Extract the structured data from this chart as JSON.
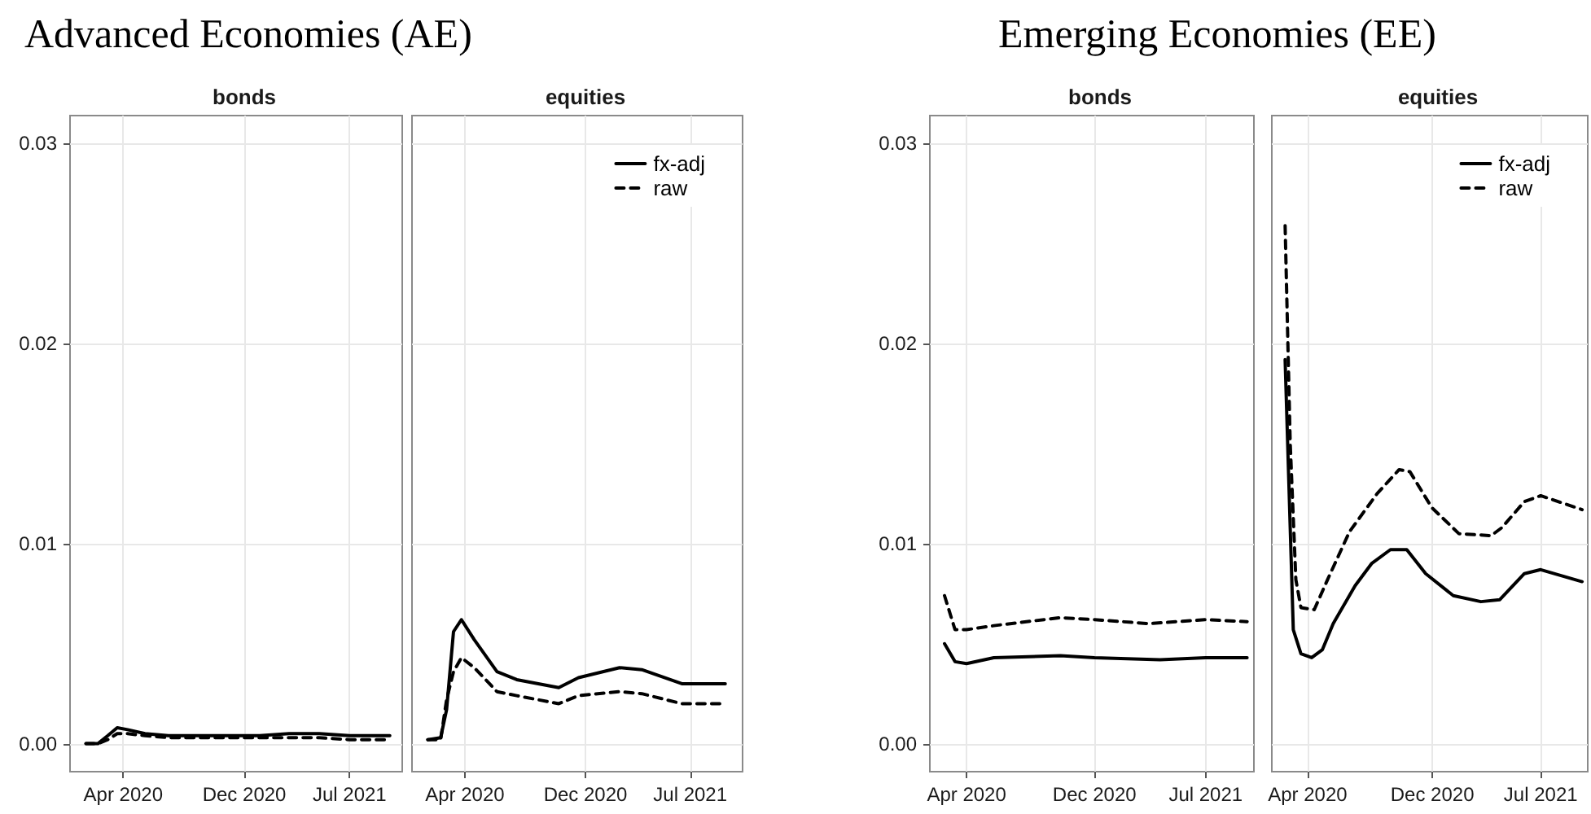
{
  "chart_data": [
    {
      "type": "line",
      "title": "Advanced Economies (AE)",
      "subtitle": "bonds",
      "xlim": [
        "2019-12-16",
        "2021-10-15"
      ],
      "ylim": [
        -0.0014,
        0.0314
      ],
      "xticks": [
        {
          "value": "2020-04",
          "label": "Apr 2020"
        },
        {
          "value": "2020-12",
          "label": "Dec 2020"
        },
        {
          "value": "2021-07",
          "label": "Jul 2021"
        }
      ],
      "yticks": [
        {
          "value": 0,
          "label": "0.00"
        },
        {
          "value": 0.01,
          "label": "0.01"
        },
        {
          "value": 0.02,
          "label": "0.02"
        },
        {
          "value": 0.03,
          "label": "0.03"
        }
      ],
      "grid": true,
      "legend": false,
      "series": [
        {
          "color": "#000000",
          "line_style": "solid",
          "x": [
            "2020-01-17",
            "2020-02-10",
            "2020-03-01",
            "2020-03-20",
            "2020-04-10",
            "2020-05-15",
            "2020-07-01",
            "2020-09-01",
            "2020-11-01",
            "2021-01-01",
            "2021-03-01",
            "2021-05-01",
            "2021-07-01",
            "2021-09-20"
          ],
          "values": [
            0,
            0,
            0.0004,
            0.0008,
            0.0007,
            0.0005,
            0.0004,
            0.0004,
            0.0004,
            0.0004,
            0.0005,
            0.0005,
            0.0004,
            0.0004
          ]
        },
        {
          "color": "#000000",
          "line_style": "dashed",
          "x": [
            "2020-01-17",
            "2020-02-10",
            "2020-03-01",
            "2020-03-20",
            "2020-04-10",
            "2020-05-15",
            "2020-07-01",
            "2020-09-01",
            "2020-11-01",
            "2021-01-01",
            "2021-03-01",
            "2021-05-01",
            "2021-07-01",
            "2021-09-20"
          ],
          "values": [
            0,
            0,
            0.0002,
            0.0005,
            0.0005,
            0.0004,
            0.0003,
            0.0003,
            0.0003,
            0.0003,
            0.0003,
            0.0003,
            0.0002,
            0.0002
          ]
        }
      ]
    },
    {
      "type": "line",
      "subtitle": "equities",
      "xlim": [
        "2019-12-16",
        "2021-10-15"
      ],
      "ylim": [
        -0.0014,
        0.0314
      ],
      "xticks": [
        {
          "value": "2020-04",
          "label": "Apr 2020"
        },
        {
          "value": "2020-12",
          "label": "Dec 2020"
        },
        {
          "value": "2021-07",
          "label": "Jul 2021"
        }
      ],
      "yticks": [
        0,
        0.01,
        0.02,
        0.03
      ],
      "tick_labels": "x",
      "grid": true,
      "legend": "top right",
      "series": [
        {
          "name": "fx-adj",
          "color": "#000000",
          "line_style": "solid",
          "x": [
            "2020-01-17",
            "2020-02-12",
            "2020-02-24",
            "2020-03-09",
            "2020-03-25",
            "2020-04-20",
            "2020-06-05",
            "2020-07-15",
            "2020-10-08",
            "2020-11-17",
            "2021-02-08",
            "2021-03-25",
            "2021-06-14",
            "2021-09-10"
          ],
          "values": [
            0.0002,
            0.0003,
            0.0017,
            0.0056,
            0.0062,
            0.0052,
            0.0036,
            0.0032,
            0.0028,
            0.0033,
            0.0038,
            0.0037,
            0.003,
            0.003
          ]
        },
        {
          "name": "raw",
          "color": "#000000",
          "line_style": "dashed",
          "x": [
            "2020-01-17",
            "2020-02-12",
            "2020-02-24",
            "2020-03-09",
            "2020-03-25",
            "2020-04-20",
            "2020-06-05",
            "2020-07-15",
            "2020-10-08",
            "2020-11-17",
            "2021-02-08",
            "2021-03-25",
            "2021-06-14",
            "2021-09-10"
          ],
          "values": [
            0.0002,
            0.0002,
            0.0022,
            0.0036,
            0.0043,
            0.0038,
            0.0026,
            0.0024,
            0.002,
            0.0024,
            0.0026,
            0.0025,
            0.002,
            0.002
          ]
        }
      ]
    },
    {
      "type": "line",
      "title": "Emerging Economies (EE)",
      "subtitle": "bonds",
      "xlim": [
        "2020-01-22",
        "2021-10-01"
      ],
      "ylim": [
        -0.0014,
        0.0314
      ],
      "xticks": [
        {
          "value": "2020-04",
          "label": "Apr 2020"
        },
        {
          "value": "2020-12",
          "label": "Dec 2020"
        },
        {
          "value": "2021-07",
          "label": "Jul 2021"
        }
      ],
      "yticks": [
        {
          "value": 0,
          "label": "0.00"
        },
        {
          "value": 0.01,
          "label": "0.01"
        },
        {
          "value": 0.02,
          "label": "0.02"
        },
        {
          "value": 0.03,
          "label": "0.03"
        }
      ],
      "grid": true,
      "legend": false,
      "series": [
        {
          "color": "#000000",
          "line_style": "solid",
          "x": [
            "2020-02-19",
            "2020-03-10",
            "2020-04-01",
            "2020-05-23",
            "2020-09-27",
            "2020-12-01",
            "2021-04-05",
            "2021-07-01",
            "2021-09-18"
          ],
          "values": [
            0.005,
            0.0041,
            0.004,
            0.0043,
            0.0044,
            0.0043,
            0.0042,
            0.0043,
            0.0043
          ]
        },
        {
          "color": "#000000",
          "line_style": "dashed",
          "x": [
            "2020-02-19",
            "2020-03-10",
            "2020-04-01",
            "2020-05-23",
            "2020-09-27",
            "2020-12-01",
            "2021-03-15",
            "2021-07-01",
            "2021-09-18"
          ],
          "values": [
            0.0074,
            0.0057,
            0.0057,
            0.0059,
            0.0063,
            0.0062,
            0.006,
            0.0062,
            0.0061
          ]
        }
      ]
    },
    {
      "type": "line",
      "subtitle": "equities",
      "xlim": [
        "2020-01-22",
        "2021-10-01"
      ],
      "ylim": [
        -0.0014,
        0.0314
      ],
      "xticks": [
        {
          "value": "2020-04",
          "label": "Apr 2020"
        },
        {
          "value": "2020-12",
          "label": "Dec 2020"
        },
        {
          "value": "2021-07",
          "label": "Jul 2021"
        }
      ],
      "yticks": [
        0,
        0.01,
        0.02,
        0.03
      ],
      "tick_labels": "x",
      "grid": true,
      "legend": "top right",
      "series": [
        {
          "name": "fx-adj",
          "color": "#000000",
          "line_style": "solid",
          "x": [
            "2020-02-17",
            "2020-03-04",
            "2020-03-19",
            "2020-04-09",
            "2020-04-30",
            "2020-05-21",
            "2020-07-03",
            "2020-08-04",
            "2020-09-10",
            "2020-10-12",
            "2020-11-18",
            "2021-01-11",
            "2021-03-06",
            "2021-04-12",
            "2021-05-30",
            "2021-07-01",
            "2021-09-20"
          ],
          "values": [
            0.0192,
            0.0057,
            0.0045,
            0.0043,
            0.0047,
            0.006,
            0.0079,
            0.009,
            0.0097,
            0.0097,
            0.0085,
            0.0074,
            0.0071,
            0.0072,
            0.0085,
            0.0087,
            0.0081
          ]
        },
        {
          "name": "raw",
          "color": "#000000",
          "line_style": "dashed",
          "x": [
            "2020-02-17",
            "2020-02-27",
            "2020-03-09",
            "2020-03-19",
            "2020-04-14",
            "2020-05-10",
            "2020-06-22",
            "2020-08-15",
            "2020-09-27",
            "2020-10-18",
            "2020-11-30",
            "2021-01-22",
            "2021-03-26",
            "2021-04-16",
            "2021-05-30",
            "2021-07-01",
            "2021-09-20"
          ],
          "values": [
            0.0259,
            0.015,
            0.0082,
            0.0068,
            0.0067,
            0.0082,
            0.0106,
            0.0125,
            0.0137,
            0.0136,
            0.0118,
            0.0105,
            0.0104,
            0.0108,
            0.0121,
            0.0124,
            0.0117
          ]
        }
      ]
    }
  ]
}
